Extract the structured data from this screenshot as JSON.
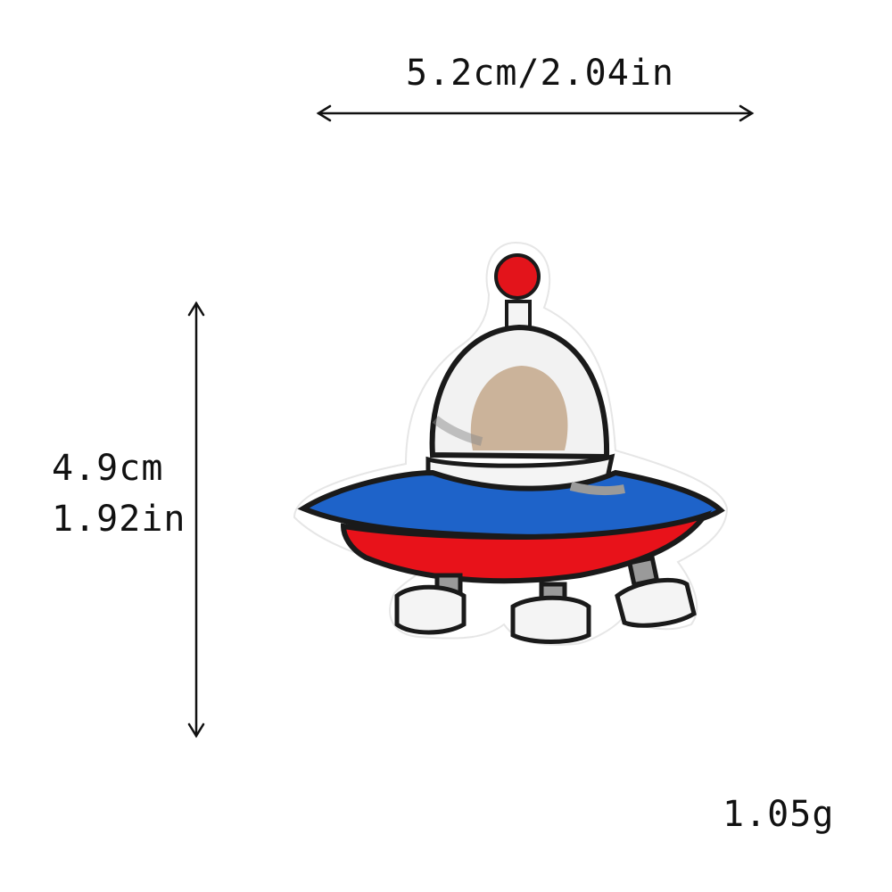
{
  "dimensions": {
    "width_label": "5.2cm/2.04in",
    "height_cm_label": "4.9cm",
    "height_in_label": "1.92in",
    "weight_label": "1.05g"
  },
  "product": {
    "subject": "embroidered UFO patch",
    "colors": {
      "outline": "#1a1a1a",
      "dome_white": "#f2f2f2",
      "dome_window": "#cbb39a",
      "saucer_blue": "#1e63c9",
      "saucer_red": "#e8121a",
      "antenna_ball": "#e3141b",
      "leg_gray": "#9a9a9a",
      "backing": "#ffffff"
    }
  }
}
